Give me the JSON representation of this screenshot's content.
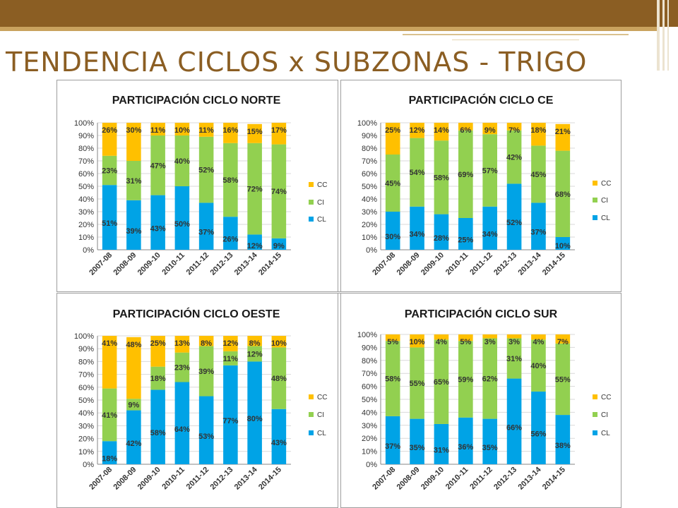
{
  "slide": {
    "title": "TENDENCIA CICLOS x SUBZONAS - TRIGO"
  },
  "colors": {
    "CL": "#00a3e6",
    "CI": "#92d050",
    "CC": "#ffc000",
    "title": "#8b5e23"
  },
  "chart_data": [
    {
      "id": "norte",
      "type": "bar",
      "stacked": true,
      "title": "PARTICIPACIÓN CICLO NORTE",
      "categories": [
        "2007-08",
        "2008-09",
        "2009-10",
        "2010-11",
        "2011-12",
        "2012-13",
        "2013-14",
        "2014-15"
      ],
      "ylim": [
        0,
        100
      ],
      "yticks": [
        "0%",
        "10%",
        "20%",
        "30%",
        "40%",
        "50%",
        "60%",
        "70%",
        "80%",
        "90%",
        "100%"
      ],
      "legend_position": "right",
      "grid": true,
      "series": [
        {
          "name": "CL",
          "values": [
            51,
            39,
            43,
            50,
            37,
            26,
            12,
            9
          ]
        },
        {
          "name": "CI",
          "values": [
            23,
            31,
            47,
            40,
            52,
            58,
            72,
            74
          ]
        },
        {
          "name": "CC",
          "values": [
            26,
            30,
            11,
            10,
            11,
            16,
            15,
            17
          ]
        }
      ]
    },
    {
      "id": "ce",
      "type": "bar",
      "stacked": true,
      "title": "PARTICIPACIÓN CICLO CE",
      "categories": [
        "2007-08",
        "2008-09",
        "2009-10",
        "2010-11",
        "2011-12",
        "2012-13",
        "2013-14",
        "2014-15"
      ],
      "ylim": [
        0,
        100
      ],
      "yticks": [
        "0%",
        "10%",
        "20%",
        "30%",
        "40%",
        "50%",
        "60%",
        "70%",
        "80%",
        "90%",
        "100%"
      ],
      "legend_position": "right",
      "grid": true,
      "series": [
        {
          "name": "CL",
          "values": [
            30,
            34,
            28,
            25,
            34,
            52,
            37,
            10
          ]
        },
        {
          "name": "CI",
          "values": [
            45,
            54,
            58,
            69,
            57,
            42,
            45,
            68
          ]
        },
        {
          "name": "CC",
          "values": [
            25,
            12,
            14,
            6,
            9,
            7,
            18,
            21
          ]
        }
      ]
    },
    {
      "id": "oeste",
      "type": "bar",
      "stacked": true,
      "title": "PARTICIPACIÓN CICLO OESTE",
      "categories": [
        "2007-08",
        "2008-09",
        "2009-10",
        "2010-11",
        "2011-12",
        "2012-13",
        "2013-14",
        "2014-15"
      ],
      "ylim": [
        0,
        100
      ],
      "yticks": [
        "0%",
        "10%",
        "20%",
        "30%",
        "40%",
        "50%",
        "60%",
        "70%",
        "80%",
        "90%",
        "100%"
      ],
      "legend_position": "right",
      "grid": true,
      "series": [
        {
          "name": "CL",
          "values": [
            18,
            42,
            58,
            64,
            53,
            77,
            80,
            43
          ]
        },
        {
          "name": "CI",
          "values": [
            41,
            9,
            18,
            23,
            39,
            11,
            12,
            48
          ]
        },
        {
          "name": "CC",
          "values": [
            41,
            48,
            25,
            13,
            8,
            12,
            8,
            10
          ]
        }
      ]
    },
    {
      "id": "sur",
      "type": "bar",
      "stacked": true,
      "title": "PARTICIPACIÓN CICLO SUR",
      "categories": [
        "2007-08",
        "2008-09",
        "2009-10",
        "2010-11",
        "2011-12",
        "2012-13",
        "2013-14",
        "2014-15"
      ],
      "ylim": [
        0,
        100
      ],
      "yticks": [
        "0%",
        "10%",
        "20%",
        "30%",
        "40%",
        "50%",
        "60%",
        "70%",
        "80%",
        "90%",
        "100%"
      ],
      "legend_position": "right",
      "grid": true,
      "series": [
        {
          "name": "CL",
          "values": [
            37,
            35,
            31,
            36,
            35,
            66,
            56,
            38
          ]
        },
        {
          "name": "CI",
          "values": [
            58,
            55,
            65,
            59,
            62,
            31,
            40,
            55
          ]
        },
        {
          "name": "CC",
          "values": [
            5,
            10,
            4,
            5,
            3,
            3,
            4,
            7
          ]
        }
      ]
    }
  ]
}
